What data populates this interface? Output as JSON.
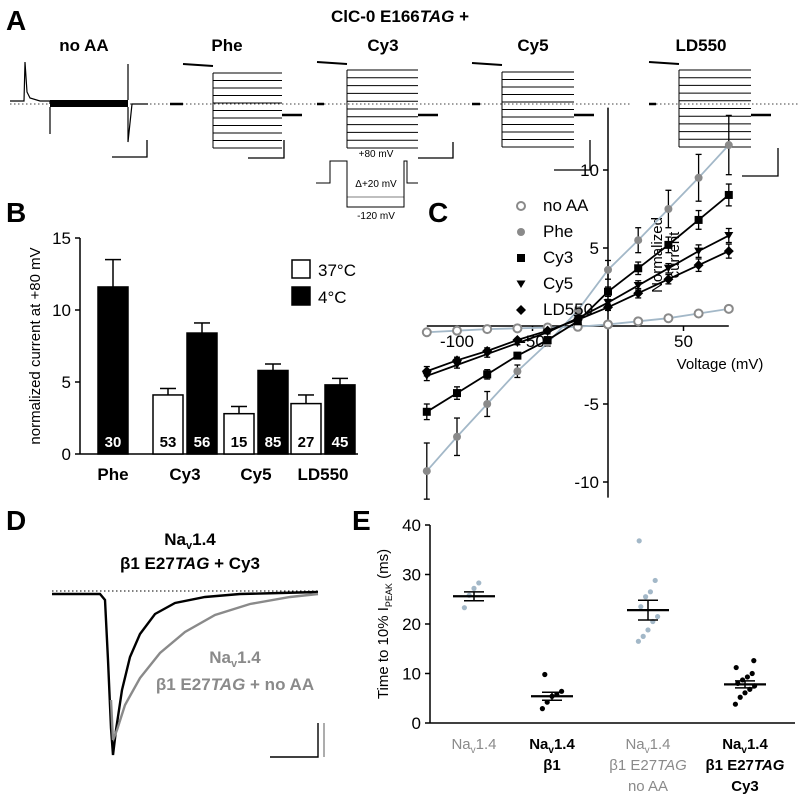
{
  "colors": {
    "black": "#000000",
    "gray": "#8a8a8a",
    "light": "#a3b8c8",
    "mid": "#707070"
  },
  "panelA": {
    "label": "A",
    "title_prefix": "ClC-0 E166",
    "title_tag": "TAG",
    "title_suffix": " +",
    "conditions": [
      "no AA",
      "Phe",
      "Cy3",
      "Cy5",
      "LD550"
    ],
    "protocol": {
      "top": "+80 mV",
      "step": "Δ+20 mV",
      "bottom": "-120 mV"
    }
  },
  "chart_data": [
    {
      "type": "bar",
      "panel": "B",
      "ylabel": "normalized current at +80 mV",
      "ylim": [
        0,
        15
      ],
      "yticks": [
        "0",
        "5",
        "10",
        "15"
      ],
      "categories": [
        "Phe",
        "Cy3",
        "Cy5",
        "LD550"
      ],
      "series": [
        {
          "name": "37°C",
          "values": [
            null,
            4.1,
            2.8,
            3.5
          ],
          "errors": [
            null,
            0.45,
            0.5,
            0.6
          ],
          "n": [
            null,
            "53",
            "15",
            "27"
          ]
        },
        {
          "name": "4°C",
          "values": [
            11.6,
            8.4,
            5.8,
            4.8
          ],
          "errors": [
            1.9,
            0.7,
            0.45,
            0.45
          ],
          "n": [
            "30",
            "56",
            "85",
            "45"
          ]
        }
      ]
    },
    {
      "type": "line",
      "panel": "C",
      "xlabel": "Voltage (mV)",
      "ylabel_line1": "Normalized",
      "ylabel_line2": "current",
      "xlim": [
        -120,
        80
      ],
      "ylim": [
        -11,
        14
      ],
      "xticks": [
        "-100",
        "-50",
        "50"
      ],
      "yticks": [
        "-10",
        "-5",
        "5",
        "10"
      ],
      "x": [
        -120,
        -100,
        -80,
        -60,
        -40,
        -20,
        0,
        20,
        40,
        60,
        80
      ],
      "series": [
        {
          "name": "no AA",
          "marker": "open-circle",
          "values": [
            -0.4,
            -0.3,
            -0.2,
            -0.15,
            -0.1,
            -0.05,
            0.1,
            0.3,
            0.5,
            0.8,
            1.1
          ],
          "errors": [
            0,
            0,
            0,
            0,
            0,
            0,
            0,
            0,
            0,
            0,
            0
          ]
        },
        {
          "name": "Phe",
          "marker": "filled-circle",
          "values": [
            -9.3,
            -7.1,
            -5.0,
            -2.9,
            -1.1,
            1.0,
            3.6,
            5.5,
            7.5,
            9.5,
            11.6
          ],
          "errors": [
            1.8,
            1.2,
            0.8,
            0.4,
            0.2,
            0.2,
            0.6,
            0.8,
            1.2,
            1.5,
            1.9
          ]
        },
        {
          "name": "Cy3",
          "marker": "square",
          "values": [
            -5.5,
            -4.3,
            -3.1,
            -1.9,
            -0.9,
            0.3,
            2.2,
            3.7,
            5.2,
            6.8,
            8.4
          ],
          "errors": [
            0.5,
            0.4,
            0.3,
            0.2,
            0.1,
            0.1,
            0.3,
            0.4,
            0.5,
            0.6,
            0.7
          ]
        },
        {
          "name": "Cy5",
          "marker": "triangle-down",
          "values": [
            -3.2,
            -2.5,
            -1.8,
            -1.1,
            -0.4,
            0.5,
            1.5,
            2.6,
            3.7,
            4.8,
            5.8
          ],
          "errors": [
            0.3,
            0.2,
            0.2,
            0.1,
            0.1,
            0.1,
            0.2,
            0.3,
            0.3,
            0.4,
            0.45
          ]
        },
        {
          "name": "LD550",
          "marker": "diamond",
          "values": [
            -2.9,
            -2.2,
            -1.6,
            -0.9,
            -0.3,
            0.4,
            1.2,
            2.1,
            3.0,
            3.9,
            4.8
          ],
          "errors": [
            0.3,
            0.2,
            0.2,
            0.1,
            0.1,
            0.1,
            0.2,
            0.3,
            0.3,
            0.4,
            0.45
          ]
        }
      ]
    },
    {
      "type": "scatter",
      "panel": "E",
      "ylabel_main": "Time to 10% I",
      "ylabel_sub": "PEAK",
      "ylabel_unit": " (ms)",
      "ylim": [
        0,
        40
      ],
      "yticks": [
        "0",
        "10",
        "20",
        "30",
        "40"
      ],
      "groups": [
        {
          "name": "Nav1.4",
          "label_lines": [
            "Na|v|1.4"
          ],
          "tag_line": null,
          "gray": true,
          "mean": 25.6,
          "sem": 0.9,
          "points": [
            23.3,
            25.8,
            27.2,
            28.3
          ]
        },
        {
          "name": "Nav1.4 β1",
          "label_lines": [
            "Na|v|1.4",
            "β1"
          ],
          "tag_line": null,
          "gray": false,
          "mean": 5.4,
          "sem": 0.8,
          "points": [
            2.9,
            4.2,
            5.4,
            5.8,
            6.4,
            9.8
          ]
        },
        {
          "name": "Nav1.4 β1 E27TAG no AA",
          "label_lines": [
            "Na|v|1.4"
          ],
          "tag_line": {
            "pre": "β1 E27",
            "tag": "TAG"
          },
          "label_last": "no AA",
          "gray": true,
          "mean": 22.8,
          "sem": 2.0,
          "points": [
            16.5,
            17.5,
            18.8,
            20.5,
            21.5,
            23.5,
            25.5,
            26.5,
            28.8,
            36.8
          ]
        },
        {
          "name": "Nav1.4 β1 E27TAG Cy3",
          "label_lines": [
            "Na|v|1.4"
          ],
          "tag_line": {
            "pre": "β1 E27",
            "tag": "TAG"
          },
          "label_last": "Cy3",
          "gray": false,
          "mean": 7.8,
          "sem": 0.7,
          "points": [
            3.8,
            5.2,
            6.1,
            6.8,
            7.5,
            8.0,
            8.7,
            9.3,
            10.0,
            11.2,
            12.6
          ]
        }
      ]
    }
  ],
  "panelD": {
    "label": "D",
    "title_line1_a": "Na",
    "title_line1_sub": "v",
    "title_line1_b": "1.4",
    "title_line2_pre": "β1 E27",
    "title_line2_tag": "TAG",
    "title_line2_post": " + Cy3",
    "gray_line1_a": "Na",
    "gray_line1_sub": "v",
    "gray_line1_b": "1.4",
    "gray_line2_pre": "β1 E27",
    "gray_line2_tag": "TAG",
    "gray_line2_post": " + no AA"
  },
  "labels": {
    "B": "B",
    "C": "C",
    "E": "E"
  }
}
